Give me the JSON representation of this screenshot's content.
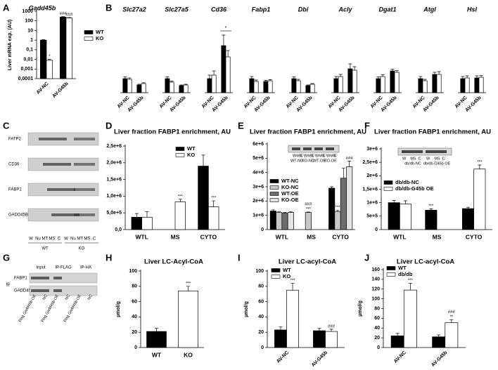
{
  "chart_data": [
    {
      "type": "bar",
      "panel": "A",
      "title": "Gadd45b",
      "ylabel": "Liver mRNA exp. (AU)",
      "log": true,
      "categories": [
        "AV-NC",
        "AV-G45b"
      ],
      "series": [
        {
          "name": "WT",
          "color": "#000000",
          "values": [
            1,
            250
          ],
          "errors": [
            0.15,
            30
          ],
          "annotations": [
            null,
            "###"
          ]
        },
        {
          "name": "KO",
          "color": "#ffffff",
          "values": [
            0.008,
            200
          ],
          "errors": [
            0.002,
            20
          ],
          "annotations": [
            "*",
            "###"
          ]
        }
      ],
      "ylim": [
        0.0001,
        1000
      ],
      "yticks": [
        {
          "value": 0.0001,
          "label": "0,0001"
        },
        {
          "value": 0.001,
          "label": "0,001"
        },
        {
          "value": 0.01,
          "label": "0,01"
        },
        {
          "value": 0.1,
          "label": "0,1"
        },
        1,
        10,
        100,
        1000
      ]
    },
    {
      "type": "bar-multi",
      "panel": "B",
      "categories": [
        "AV-NC",
        "AV-G45b"
      ],
      "ylim": [
        0,
        4.5
      ],
      "panels": [
        {
          "title": "Slc27a2",
          "series": [
            {
              "color": "#000000",
              "values": [
                1,
                0.55
              ],
              "errors": [
                0.12,
                0.05
              ]
            },
            {
              "color": "#ffffff",
              "values": [
                0.95,
                0.65
              ],
              "errors": [
                0.1,
                0.06
              ]
            }
          ]
        },
        {
          "title": "Slc27a5",
          "series": [
            {
              "color": "#000000",
              "values": [
                1,
                0.5
              ],
              "errors": [
                0.12,
                0.05
              ]
            },
            {
              "color": "#ffffff",
              "values": [
                0.75,
                0.55
              ],
              "errors": [
                0.08,
                0.05
              ]
            }
          ]
        },
        {
          "title": "Cd36",
          "series": [
            {
              "color": "#000000",
              "values": [
                1,
                3.35
              ],
              "errors": [
                0.25,
                0.75
              ]
            },
            {
              "color": "#ffffff",
              "values": [
                1.25,
                2.55
              ],
              "errors": [
                0.3,
                0.45
              ]
            }
          ],
          "annotations": "*"
        },
        {
          "title": "Fabp1",
          "series": [
            {
              "color": "#000000",
              "values": [
                1,
                0.8
              ],
              "errors": [
                0.15,
                0.08
              ]
            },
            {
              "color": "#ffffff",
              "values": [
                0.8,
                0.85
              ],
              "errors": [
                0.1,
                0.08
              ]
            }
          ]
        },
        {
          "title": "Dbi",
          "series": [
            {
              "color": "#000000",
              "values": [
                1,
                0.5
              ],
              "errors": [
                0.12,
                0.05
              ]
            },
            {
              "color": "#ffffff",
              "values": [
                0.85,
                0.6
              ],
              "errors": [
                0.1,
                0.05
              ]
            }
          ]
        },
        {
          "title": "Acly",
          "series": [
            {
              "color": "#000000",
              "values": [
                1,
                1.7
              ],
              "errors": [
                0.15,
                0.35
              ]
            },
            {
              "color": "#ffffff",
              "values": [
                1.15,
                1.6
              ],
              "errors": [
                0.15,
                0.25
              ]
            }
          ]
        },
        {
          "title": "Dgat1",
          "series": [
            {
              "color": "#000000",
              "values": [
                1,
                1.55
              ],
              "errors": [
                0.12,
                0.12
              ]
            },
            {
              "color": "#ffffff",
              "values": [
                1.15,
                1.45
              ],
              "errors": [
                0.12,
                0.12
              ]
            }
          ]
        },
        {
          "title": "Atgl",
          "series": [
            {
              "color": "#000000",
              "values": [
                1,
                1.3
              ],
              "errors": [
                0.15,
                0.15
              ]
            },
            {
              "color": "#ffffff",
              "values": [
                0.85,
                1.3
              ],
              "errors": [
                0.1,
                0.2
              ]
            }
          ]
        },
        {
          "title": "Hsl",
          "series": [
            {
              "color": "#000000",
              "values": [
                1,
                1.05
              ],
              "errors": [
                0.15,
                0.15
              ]
            },
            {
              "color": "#ffffff",
              "values": [
                1.05,
                1.1
              ],
              "errors": [
                0.15,
                0.12
              ]
            }
          ]
        }
      ]
    },
    {
      "type": "bar",
      "panel": "D",
      "title": "Liver fraction FABP1 enrichment, AU",
      "categories": [
        "WTL",
        "MS",
        "CYTO"
      ],
      "series": [
        {
          "name": "WT",
          "color": "#000000",
          "values": [
            370000,
            null,
            1900000
          ],
          "errors": [
            110000,
            null,
            330000
          ]
        },
        {
          "name": "KO",
          "color": "#ffffff",
          "values": [
            370000,
            830000,
            680000
          ],
          "errors": [
            170000,
            80000,
            180000
          ],
          "annotations": [
            null,
            "***",
            "***"
          ]
        }
      ],
      "ylim": [
        0,
        2500000
      ],
      "yticks": [
        {
          "value": 0,
          "label": "0,0"
        },
        {
          "value": 500000,
          "label": "5,0e+5"
        },
        {
          "value": 1000000,
          "label": "1,0e+6"
        },
        {
          "value": 1500000,
          "label": "1,5e+6"
        },
        {
          "value": 2000000,
          "label": "2,0e+6"
        },
        {
          "value": 2500000,
          "label": "2,5e+6"
        }
      ]
    },
    {
      "type": "bar",
      "panel": "E",
      "title": "Liver fraction FABP1 enrichment, AU",
      "categories": [
        "WTL",
        "MS",
        "CYTO"
      ],
      "series": [
        {
          "name": "WT-NC",
          "color": "#000000",
          "values": [
            1300000,
            null,
            2900000
          ],
          "errors": [
            80000,
            null,
            100000
          ]
        },
        {
          "name": "KO-NC",
          "color": "#c8c8c8",
          "values": [
            1200000,
            1200000,
            1250000
          ],
          "errors": [
            50000,
            30000,
            100000
          ],
          "annotations": [
            null,
            [
              "###",
              "***"
            ],
            "***"
          ]
        },
        {
          "name": "WT-OE",
          "color": "#6e6e6e",
          "values": [
            1150000,
            null,
            3600000
          ],
          "errors": [
            50000,
            null,
            700000
          ]
        },
        {
          "name": "KO-OE",
          "color": "#e4e4e4",
          "values": [
            1200000,
            null,
            4400000
          ],
          "errors": [
            40000,
            null,
            400000
          ],
          "annotations": [
            null,
            null,
            "###"
          ]
        }
      ],
      "ylim": [
        0,
        6000000
      ],
      "yticks": [
        0,
        {
          "value": 1000000,
          "label": "1e+6"
        },
        {
          "value": 2000000,
          "label": "2e+6"
        },
        {
          "value": 3000000,
          "label": "3e+6"
        },
        {
          "value": 4000000,
          "label": "4e+6"
        },
        {
          "value": 5000000,
          "label": "5e+6"
        },
        {
          "value": 6000000,
          "label": "6e+6"
        }
      ],
      "inset": {
        "lanes": [
          "W",
          "MS",
          "C"
        ],
        "groups": [
          "WT-NC",
          "KO-NC",
          "WT-OE",
          "KO-OE"
        ]
      }
    },
    {
      "type": "bar",
      "panel": "F",
      "title": "Liver fraction FABP1 enrichment, AU",
      "categories": [
        "WTL",
        "MS",
        "CYTO"
      ],
      "series": [
        {
          "name": "db/db-NC",
          "color": "#000000",
          "values": [
            1000000,
            720000,
            780000
          ],
          "errors": [
            80000,
            50000,
            50000
          ],
          "annotations": [
            null,
            "***",
            null
          ]
        },
        {
          "name": "db/db-G45b OE",
          "color": "#ffffff",
          "values": [
            950000,
            null,
            2250000
          ],
          "errors": [
            120000,
            null,
            150000
          ],
          "annotations": [
            null,
            null,
            "***"
          ]
        }
      ],
      "ylim": [
        0,
        3000000
      ],
      "yticks": [
        0,
        {
          "value": 500000,
          "label": "5e+5"
        },
        {
          "value": 1000000,
          "label": "1e+6"
        },
        {
          "value": 1500000,
          "label": "1,5e+6"
        },
        {
          "value": 2000000,
          "label": "2e+6"
        },
        {
          "value": 2500000,
          "label": "2,5e+6"
        },
        {
          "value": 3000000,
          "label": "3e+6"
        }
      ],
      "inset": {
        "lanes": [
          "W",
          "MS",
          "C"
        ],
        "groups": [
          "db/db-NC",
          "db/db-G45b OE"
        ]
      }
    },
    {
      "type": "bar",
      "panel": "H",
      "title": "Liver LC-Acyl-CoA",
      "ylabel": "µmol/g",
      "categories": [
        "WT",
        "KO"
      ],
      "series": [
        {
          "colors": [
            "#000000",
            "#ffffff"
          ],
          "values": [
            21,
            74
          ],
          "errors": [
            4,
            6
          ],
          "annotations": [
            null,
            "***"
          ]
        }
      ],
      "ylim": [
        0,
        100
      ],
      "yticks": [
        0,
        20,
        40,
        60,
        80,
        100
      ]
    },
    {
      "type": "bar",
      "panel": "I",
      "title": "Liver LC-acyl-CoA",
      "ylabel": "µmol/g",
      "categories": [
        "AV-NC",
        "AV-G45b"
      ],
      "series": [
        {
          "name": "WT",
          "color": "#000000",
          "values": [
            23,
            22
          ],
          "errors": [
            4,
            3
          ]
        },
        {
          "name": "KO",
          "color": "#ffffff",
          "values": [
            75,
            21
          ],
          "errors": [
            9,
            3
          ],
          "annotations": [
            "***",
            "###"
          ]
        }
      ],
      "ylim": [
        0,
        100
      ],
      "yticks": [
        0,
        20,
        40,
        60,
        80,
        100
      ]
    },
    {
      "type": "bar",
      "panel": "J",
      "title": "Liver LC-acyl-CoA",
      "ylabel": "µmol/g",
      "categories": [
        "AV-NC",
        "AV-G45b"
      ],
      "series": [
        {
          "name": "WT",
          "color": "#000000",
          "values": [
            24,
            22
          ],
          "errors": [
            5,
            4
          ]
        },
        {
          "name": "db/db",
          "color": "#ffffff",
          "values": [
            118,
            51
          ],
          "errors": [
            14,
            6
          ],
          "annotations": [
            "***",
            [
              "###",
              "**"
            ]
          ]
        }
      ],
      "ylim": [
        0,
        160
      ],
      "yticks": [
        0,
        20,
        40,
        60,
        80,
        100,
        120,
        140,
        160
      ]
    }
  ],
  "blots": [
    {
      "panel": "C",
      "rows": [
        "FATP2",
        "CD36",
        "FABP1",
        "GADD45B"
      ],
      "lanes": [
        "W",
        "Nu",
        "MT",
        "MS",
        "C",
        "W",
        "Nu",
        "MT",
        "MS",
        "C"
      ],
      "groups": [
        "WT",
        "KO"
      ]
    },
    {
      "panel": "G",
      "headers": [
        "Input",
        "IP-FLAG",
        "IP-HA"
      ],
      "side": "IB",
      "rows": [
        "FABP1",
        "GADD45β"
      ],
      "lanes": [
        "Flag Gadd45b OE",
        "NC",
        "Flag Gadd45b OE",
        "NC",
        "Flag Gadd45b OE",
        "NC"
      ]
    }
  ]
}
